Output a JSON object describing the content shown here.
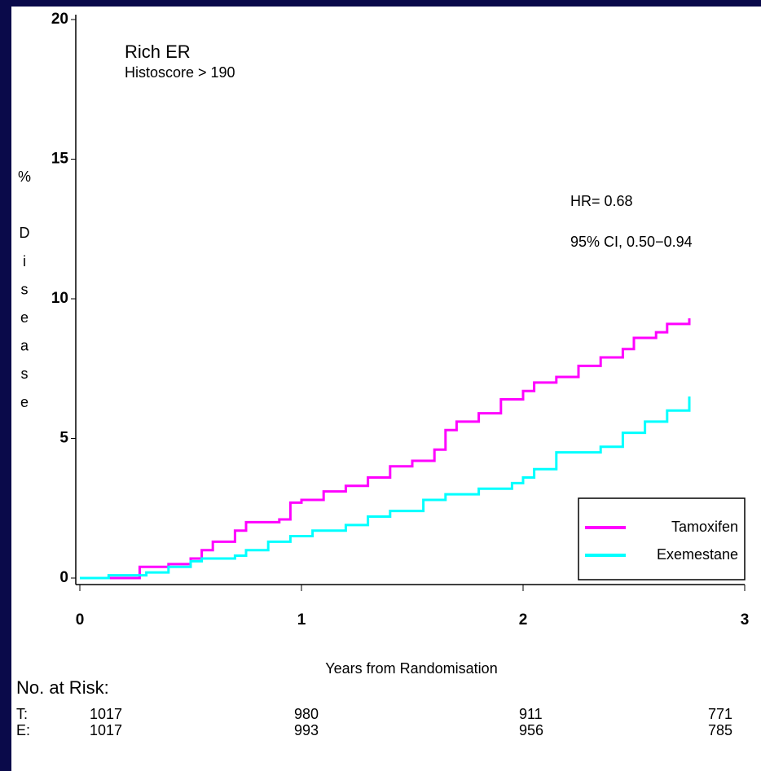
{
  "chart_data": {
    "type": "step",
    "annotations": [
      "Rich ER",
      "Histoscore > 190",
      "HR= 0.68",
      "95% CI, 0.50−0.94"
    ],
    "xlabel": "Years from Randomisation",
    "ylabel": "% Disease",
    "xlim": [
      0,
      3
    ],
    "xticks": [
      0,
      1,
      2,
      3
    ],
    "ylim": [
      0,
      20
    ],
    "yticks": [
      0,
      5,
      10,
      15,
      20
    ],
    "legend": "bottom-right",
    "series": [
      {
        "name": "Tamoxifen",
        "color": "#ff00ff",
        "x": [
          0,
          0.27,
          0.4,
          0.5,
          0.55,
          0.6,
          0.7,
          0.75,
          0.9,
          0.95,
          1.0,
          1.1,
          1.2,
          1.3,
          1.4,
          1.5,
          1.6,
          1.65,
          1.7,
          1.8,
          1.9,
          2.0,
          2.05,
          2.15,
          2.25,
          2.35,
          2.45,
          2.5,
          2.6,
          2.65,
          2.75
        ],
        "values": [
          0,
          0.4,
          0.5,
          0.7,
          1.0,
          1.3,
          1.7,
          2.0,
          2.1,
          2.7,
          2.8,
          3.1,
          3.3,
          3.6,
          4.0,
          4.2,
          4.6,
          5.3,
          5.6,
          5.9,
          6.4,
          6.7,
          7.0,
          7.2,
          7.6,
          7.9,
          8.2,
          8.6,
          8.8,
          9.1,
          9.3
        ]
      },
      {
        "name": "Exemestane",
        "color": "#00ffff",
        "x": [
          0,
          0.13,
          0.3,
          0.4,
          0.5,
          0.55,
          0.7,
          0.75,
          0.85,
          0.95,
          1.05,
          1.2,
          1.3,
          1.4,
          1.55,
          1.65,
          1.8,
          1.95,
          2.0,
          2.05,
          2.15,
          2.35,
          2.45,
          2.55,
          2.65,
          2.75
        ],
        "values": [
          0,
          0.1,
          0.2,
          0.4,
          0.6,
          0.7,
          0.8,
          1.0,
          1.3,
          1.5,
          1.7,
          1.9,
          2.2,
          2.4,
          2.8,
          3.0,
          3.2,
          3.4,
          3.6,
          3.9,
          4.5,
          4.7,
          5.2,
          5.6,
          6.0,
          6.5
        ]
      }
    ]
  },
  "risk_table": {
    "title": "No. at Risk:",
    "rows": [
      {
        "label": "T:",
        "values": [
          1017,
          980,
          911,
          771
        ]
      },
      {
        "label": "E:",
        "values": [
          1017,
          993,
          956,
          785
        ]
      }
    ]
  }
}
